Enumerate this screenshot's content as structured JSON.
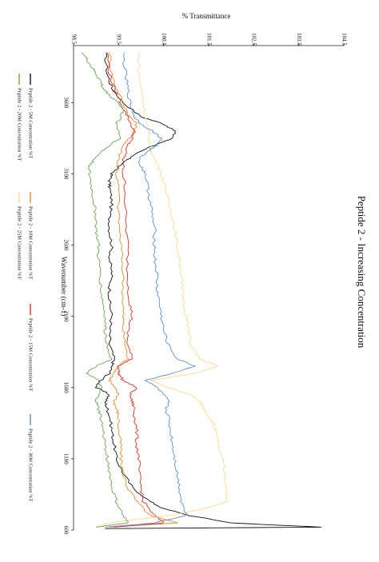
{
  "chart_data": {
    "type": "line",
    "title": "Peptide 2 - Increasing Concentration",
    "xlabel": "Wavenumber (cm-1)",
    "ylabel": "% Transmittance",
    "xlim": [
      4000,
      600
    ],
    "ylim": [
      98.5,
      104.5
    ],
    "x_ticks": [
      3600,
      3100,
      2600,
      2100,
      1600,
      1100,
      600
    ],
    "x_tick_labels": [
      "3600",
      "3100",
      "2600",
      "2100",
      "1600",
      "1100",
      "600"
    ],
    "y_ticks": [
      98.5,
      99.5,
      100.5,
      101.5,
      102.5,
      103.5,
      104.5
    ],
    "y_tick_labels": [
      "98.5",
      "99.5",
      "100.5",
      "101.5",
      "102.5",
      "103.5",
      "104.5"
    ],
    "grid": false,
    "legend_position": "bottom",
    "orientation": "rotated-90-clockwise",
    "series": [
      {
        "name": "Peptide 2 - 5M Concentration %T",
        "color": "#111111",
        "x": [
          3950,
          3800,
          3700,
          3600,
          3500,
          3450,
          3400,
          3350,
          3300,
          3250,
          3200,
          3150,
          3100,
          3050,
          3000,
          2900,
          2800,
          2700,
          2600,
          2500,
          2400,
          2300,
          2200,
          2100,
          2000,
          1900,
          1800,
          1750,
          1700,
          1650,
          1600,
          1550,
          1500,
          1450,
          1400,
          1300,
          1200,
          1100,
          1000,
          900,
          800,
          750,
          700,
          650,
          620,
          610
        ],
        "y": [
          99.2,
          99.25,
          99.35,
          99.6,
          100.0,
          100.5,
          100.75,
          100.7,
          100.3,
          99.9,
          99.7,
          99.5,
          99.35,
          99.3,
          99.3,
          99.35,
          99.3,
          99.3,
          99.35,
          99.3,
          99.35,
          99.3,
          99.3,
          99.35,
          99.3,
          99.3,
          99.4,
          99.35,
          99.3,
          99.1,
          99.0,
          99.3,
          99.2,
          99.25,
          99.3,
          99.35,
          99.4,
          99.45,
          99.6,
          99.8,
          100.2,
          100.5,
          101.1,
          102.0,
          104.0,
          99.2
        ]
      },
      {
        "name": "Peptide 2 - 10M Concentration %T",
        "color": "#e8892a",
        "x": [
          3950,
          3800,
          3700,
          3600,
          3500,
          3450,
          3400,
          3350,
          3300,
          3200,
          3100,
          3000,
          2800,
          2600,
          2400,
          2200,
          2100,
          2000,
          1900,
          1800,
          1750,
          1700,
          1650,
          1600,
          1550,
          1500,
          1450,
          1400,
          1300,
          1200,
          1100,
          1000,
          900,
          800,
          700,
          650,
          620
        ],
        "y": [
          99.3,
          99.35,
          99.45,
          99.6,
          99.75,
          99.9,
          99.85,
          99.75,
          99.6,
          99.5,
          99.45,
          99.5,
          99.5,
          99.55,
          99.6,
          99.6,
          99.6,
          99.6,
          99.65,
          99.7,
          99.5,
          99.4,
          99.3,
          99.4,
          99.5,
          99.4,
          99.45,
          99.5,
          99.5,
          99.55,
          99.55,
          99.6,
          99.7,
          99.9,
          100.2,
          100.8,
          99.3
        ]
      },
      {
        "name": "Peptide 2 - 15M Concentration %T",
        "color": "#e03028",
        "x": [
          3950,
          3800,
          3700,
          3600,
          3500,
          3400,
          3350,
          3300,
          3200,
          3100,
          3000,
          2800,
          2600,
          2400,
          2200,
          2100,
          2000,
          1900,
          1800,
          1750,
          1700,
          1650,
          1600,
          1550,
          1500,
          1450,
          1400,
          1300,
          1200,
          1100,
          1000,
          900,
          800,
          700,
          650,
          620
        ],
        "y": [
          99.25,
          99.3,
          99.4,
          99.55,
          99.7,
          99.85,
          99.8,
          99.7,
          99.6,
          99.6,
          99.65,
          99.65,
          99.7,
          99.7,
          99.75,
          99.8,
          99.7,
          99.7,
          99.8,
          99.5,
          99.5,
          99.6,
          99.9,
          99.75,
          99.8,
          99.85,
          99.85,
          99.9,
          99.9,
          99.95,
          99.95,
          100.0,
          100.05,
          100.3,
          100.5,
          99.4
        ]
      },
      {
        "name": "Peptide 2 - 25M Concentration %T",
        "color": "#ffd98a",
        "x": [
          3950,
          3800,
          3700,
          3600,
          3500,
          3400,
          3300,
          3200,
          3100,
          3000,
          2900,
          2800,
          2700,
          2600,
          2500,
          2400,
          2300,
          2200,
          2100,
          2000,
          1900,
          1800,
          1750,
          1700,
          1650,
          1600,
          1550,
          1500,
          1450,
          1400,
          1350,
          1300,
          1200,
          1100,
          1000,
          900,
          800,
          750,
          700,
          650,
          620
        ],
        "y": [
          99.95,
          99.95,
          100.0,
          100.05,
          100.1,
          100.15,
          100.2,
          100.3,
          100.45,
          100.55,
          100.6,
          100.7,
          100.75,
          100.8,
          100.85,
          100.9,
          100.9,
          100.95,
          101.0,
          101.05,
          101.1,
          101.3,
          101.7,
          101.2,
          100.2,
          100.6,
          101.1,
          101.3,
          101.4,
          101.5,
          101.6,
          101.65,
          101.7,
          101.8,
          101.85,
          101.9,
          101.9,
          101.4,
          100.6,
          99.3,
          99.0
        ]
      },
      {
        "name": "Peptide 2 - 30M Concentration %T",
        "color": "#5b8fcf",
        "x": [
          3950,
          3800,
          3700,
          3600,
          3500,
          3450,
          3400,
          3350,
          3300,
          3250,
          3200,
          3150,
          3100,
          3000,
          2900,
          2800,
          2700,
          2600,
          2500,
          2400,
          2300,
          2200,
          2100,
          2000,
          1900,
          1800,
          1750,
          1700,
          1650,
          1600,
          1550,
          1500,
          1450,
          1400,
          1300,
          1200,
          1100,
          1000,
          900,
          800,
          700,
          650,
          620
        ],
        "y": [
          99.6,
          99.65,
          99.7,
          99.75,
          99.85,
          100.0,
          100.25,
          100.45,
          100.35,
          100.1,
          99.95,
          100.0,
          100.1,
          100.15,
          100.2,
          100.25,
          100.3,
          100.3,
          100.3,
          100.35,
          100.35,
          100.4,
          100.45,
          100.5,
          100.6,
          100.8,
          101.2,
          100.7,
          100.1,
          100.35,
          100.5,
          100.6,
          100.55,
          100.6,
          100.65,
          100.7,
          100.75,
          100.8,
          100.85,
          100.9,
          101.0,
          100.3,
          99.2
        ]
      },
      {
        "name": "Peptide 2 - 20M Concentration %T",
        "color": "#6aa84f",
        "x": [
          3950,
          3900,
          3850,
          3800,
          3750,
          3700,
          3650,
          3600,
          3550,
          3500,
          3450,
          3400,
          3350,
          3300,
          3250,
          3200,
          3150,
          3100,
          3000,
          2900,
          2800,
          2700,
          2600,
          2500,
          2400,
          2300,
          2200,
          2100,
          2000,
          1900,
          1800,
          1750,
          1700,
          1650,
          1600,
          1550,
          1500,
          1450,
          1400,
          1300,
          1200,
          1100,
          1000,
          900,
          800,
          700,
          650,
          620
        ],
        "y": [
          98.7,
          98.8,
          98.9,
          99.0,
          99.1,
          99.15,
          99.3,
          99.5,
          99.6,
          99.55,
          99.45,
          99.5,
          99.55,
          99.3,
          99.1,
          98.95,
          98.85,
          98.85,
          98.9,
          98.95,
          99.0,
          99.0,
          99.05,
          99.05,
          99.1,
          99.1,
          99.15,
          99.2,
          99.2,
          99.25,
          99.35,
          99.0,
          98.8,
          99.05,
          99.1,
          99.05,
          99.0,
          99.05,
          99.1,
          99.15,
          99.2,
          99.25,
          99.3,
          99.35,
          99.45,
          99.6,
          99.7,
          99.0
        ]
      }
    ]
  }
}
